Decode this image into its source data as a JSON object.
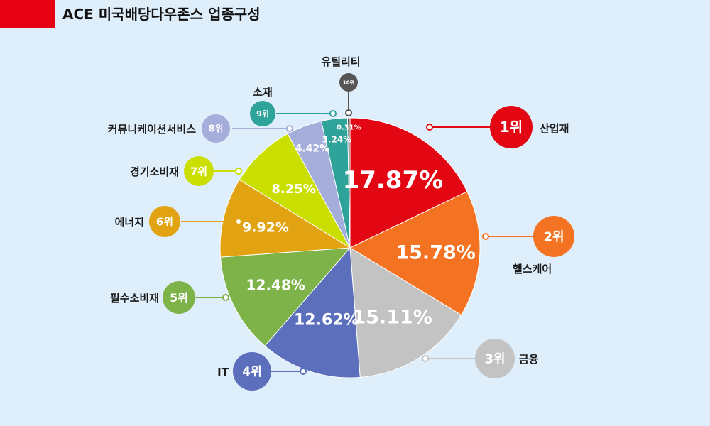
{
  "title": "ACE 미국배당다우존스 업종구성",
  "colors": {
    "red_bar": "#e50012",
    "background": "#dfeefb"
  },
  "chart_data": {
    "type": "pie",
    "title": "ACE 미국배당다우존스 업종구성",
    "unit": "%",
    "slices": [
      {
        "rank": "1위",
        "name": "산업재",
        "value": 17.87,
        "label": "17.87%",
        "color": "#e30613"
      },
      {
        "rank": "2위",
        "name": "헬스케어",
        "value": 15.78,
        "label": "15.78%",
        "color": "#f47322"
      },
      {
        "rank": "3위",
        "name": "금융",
        "value": 15.11,
        "label": "15.11%",
        "color": "#c3c3c3"
      },
      {
        "rank": "4위",
        "name": "IT",
        "value": 12.62,
        "label": "12.62%",
        "color": "#5b6fbd"
      },
      {
        "rank": "5위",
        "name": "필수소비재",
        "value": 12.48,
        "label": "12.48%",
        "color": "#7db349"
      },
      {
        "rank": "6위",
        "name": "에너지",
        "value": 9.92,
        "label": "9.92%",
        "color": "#e2a312"
      },
      {
        "rank": "7위",
        "name": "경기소비재",
        "value": 8.25,
        "label": "8.25%",
        "color": "#cadf00"
      },
      {
        "rank": "8위",
        "name": "커뮤니케이션서비스",
        "value": 4.42,
        "label": "4.42%",
        "color": "#a5aedb"
      },
      {
        "rank": "9위",
        "name": "소재",
        "value": 3.24,
        "label": "3.24%",
        "color": "#2ea39a"
      },
      {
        "rank": "10위",
        "name": "유틸리티",
        "value": 0.31,
        "label": "0.31%",
        "color": "#555555"
      }
    ]
  }
}
